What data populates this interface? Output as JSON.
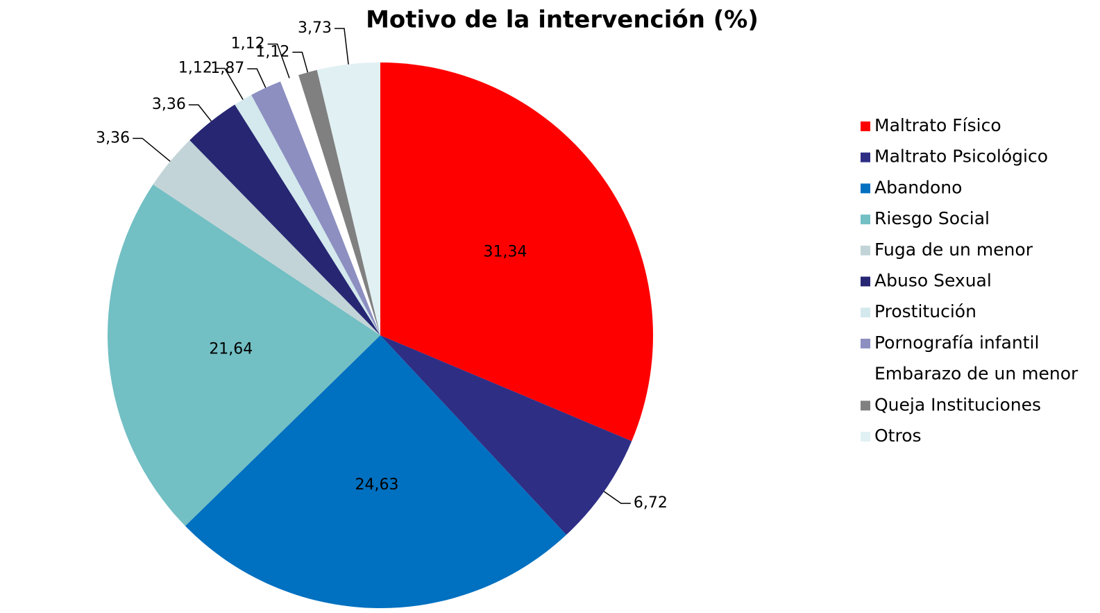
{
  "chart_data": {
    "type": "pie",
    "title": "Motivo de la intervención (%)",
    "categories": [
      "Maltrato Físico",
      "Maltrato Psicológico",
      "Abandono",
      "Riesgo Social",
      "Fuga de un menor",
      "Abuso Sexual",
      "Prostitución",
      "Pornografía infantil",
      "Embarazo de un menor",
      "Queja Instituciones",
      "Otros"
    ],
    "values": [
      31.34,
      6.72,
      24.63,
      21.64,
      3.36,
      3.36,
      1.12,
      1.87,
      1.12,
      1.12,
      3.73
    ],
    "value_labels": [
      "31,34",
      "6,72",
      "24,63",
      "21,64",
      "3,36",
      "3,36",
      "1,12",
      "1,87",
      "1,12",
      "1,12",
      "3,73"
    ],
    "colors": [
      "#ff0000",
      "#2e2e85",
      "#0070c0",
      "#72bfc4",
      "#c2d4d7",
      "#262673",
      "#d3e9ed",
      "#8c8fc0",
      "#ffffff",
      "#808080",
      "#e1f0f3"
    ],
    "legend": "right"
  }
}
